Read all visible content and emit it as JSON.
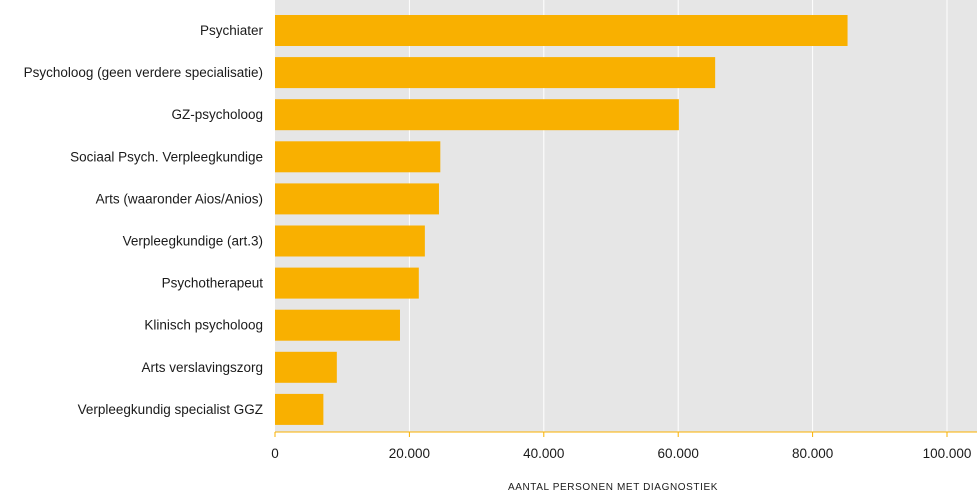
{
  "chart_data": {
    "type": "bar",
    "orientation": "horizontal",
    "categories": [
      "Psychiater",
      "Psycholoog (geen verdere specialisatie)",
      "GZ-psycholoog",
      "Sociaal Psych. Verpleegkundige",
      "Arts (waaronder Aios/Anios)",
      "Verpleegkundige (art.3)",
      "Psychotherapeut",
      "Klinisch psycholoog",
      "Arts verslavingszorg",
      "Verpleegkundig specialist GGZ"
    ],
    "values": [
      85200,
      65500,
      60100,
      24600,
      24400,
      22300,
      21400,
      18600,
      9200,
      7200
    ],
    "xlabel": "AANTAL PERSONEN MET DIAGNOSTIEK",
    "xlim": [
      0,
      100000
    ],
    "xticks": [
      0,
      20000,
      40000,
      60000,
      80000,
      100000
    ],
    "xtick_labels": [
      "0",
      "20.000",
      "40.000",
      "60.000",
      "80.000",
      "100.000"
    ],
    "grid": true,
    "colors": {
      "bar": "#F9B000",
      "plot_background": "#E6E6E6",
      "gridline": "#FFFFFF",
      "axis": "#F9B000"
    }
  }
}
